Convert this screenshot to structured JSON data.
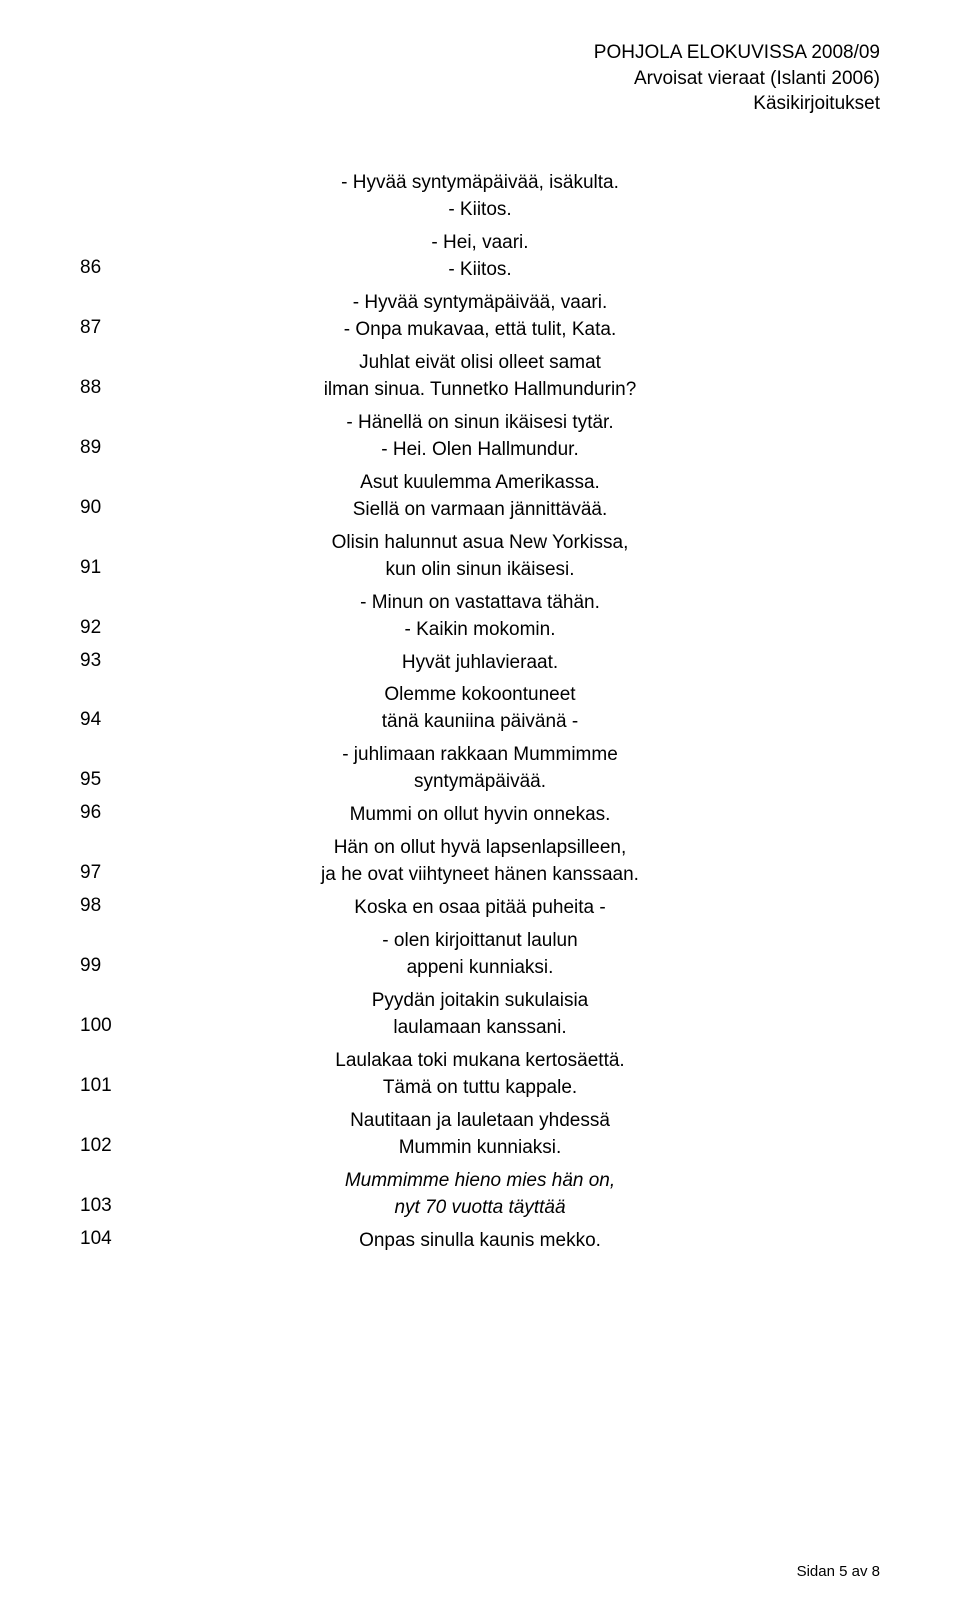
{
  "header": {
    "line1": "POHJOLA ELOKUVISSA 2008/09",
    "line2": "Arvoisat vieraat (Islanti 2006)",
    "line3": "Käsikirjoitukset"
  },
  "entries": [
    {
      "num": null,
      "lines": [
        {
          "t": "- Hyvää syntymäpäivää, isäkulta."
        },
        {
          "t": "- Kiitos."
        }
      ]
    },
    {
      "num": "86",
      "lines": [
        {
          "t": "- Hei, vaari."
        },
        {
          "t": "- Kiitos."
        }
      ]
    },
    {
      "num": "87",
      "lines": [
        {
          "t": "- Hyvää syntymäpäivää, vaari."
        },
        {
          "t": "- Onpa mukavaa, että tulit, Kata."
        }
      ]
    },
    {
      "num": "88",
      "lines": [
        {
          "t": "Juhlat eivät olisi olleet samat"
        },
        {
          "t": "ilman sinua. Tunnetko Hallmundurin?"
        }
      ]
    },
    {
      "num": "89",
      "lines": [
        {
          "t": "- Hänellä on sinun ikäisesi tytär."
        },
        {
          "t": "- Hei. Olen Hallmundur."
        }
      ]
    },
    {
      "num": "90",
      "lines": [
        {
          "t": "Asut kuulemma Amerikassa."
        },
        {
          "t": "Siellä on varmaan jännittävää."
        }
      ]
    },
    {
      "num": "91",
      "lines": [
        {
          "t": "Olisin halunnut asua New Yorkissa,"
        },
        {
          "t": "kun olin sinun ikäisesi."
        }
      ]
    },
    {
      "num": "92",
      "lines": [
        {
          "t": "- Minun on vastattava tähän."
        },
        {
          "t": "- Kaikin mokomin."
        }
      ]
    },
    {
      "num": "93",
      "lines": [
        {
          "t": "Hyvät juhlavieraat."
        }
      ]
    },
    {
      "num": "94",
      "lines": [
        {
          "t": "Olemme kokoontuneet"
        },
        {
          "t": "tänä kauniina päivänä -"
        }
      ]
    },
    {
      "num": "95",
      "lines": [
        {
          "t": "- juhlimaan rakkaan Mummimme"
        },
        {
          "t": "syntymäpäivää."
        }
      ]
    },
    {
      "num": "96",
      "lines": [
        {
          "t": "Mummi on ollut hyvin onnekas."
        }
      ]
    },
    {
      "num": "97",
      "lines": [
        {
          "t": "Hän on ollut hyvä lapsenlapsilleen,"
        },
        {
          "t": "ja he ovat viihtyneet hänen kanssaan."
        }
      ]
    },
    {
      "num": "98",
      "lines": [
        {
          "t": "Koska en osaa pitää puheita -"
        }
      ]
    },
    {
      "num": "99",
      "lines": [
        {
          "t": "- olen kirjoittanut laulun"
        },
        {
          "t": "appeni kunniaksi."
        }
      ]
    },
    {
      "num": "100",
      "lines": [
        {
          "t": "Pyydän joitakin sukulaisia"
        },
        {
          "t": "laulamaan kanssani."
        }
      ]
    },
    {
      "num": "101",
      "lines": [
        {
          "t": "Laulakaa toki mukana kertosäettä."
        },
        {
          "t": "Tämä on tuttu kappale."
        }
      ]
    },
    {
      "num": "102",
      "lines": [
        {
          "t": "Nautitaan ja lauletaan yhdessä"
        },
        {
          "t": "Mummin kunniaksi."
        }
      ]
    },
    {
      "num": "103",
      "lines": [
        {
          "t": "Mummimme hieno mies hän on,",
          "italic": true
        },
        {
          "t": "nyt 70 vuotta täyttää",
          "italic": true
        }
      ]
    },
    {
      "num": "104",
      "lines": [
        {
          "t": "Onpas sinulla kaunis mekko."
        }
      ]
    }
  ],
  "footer": "Sidan 5 av 8"
}
